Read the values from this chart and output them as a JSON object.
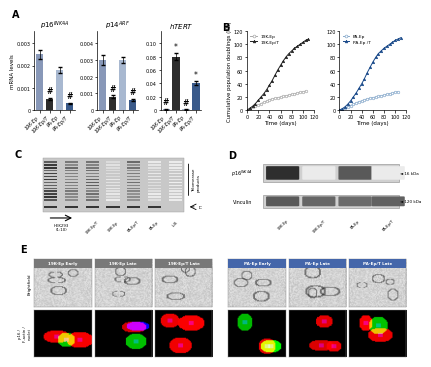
{
  "panel_A": {
    "categories": [
      "19K-Ep",
      "19K-Ep/T",
      "PA-Ep",
      "PA-Ep/T"
    ],
    "bar_colors": [
      "#8898b8",
      "#2d2d2d",
      "#a8b8d0",
      "#3a5a8a"
    ],
    "p16_values": [
      0.0025,
      0.0005,
      0.0018,
      0.0003
    ],
    "p16_errors": [
      0.0002,
      5e-05,
      0.00015,
      3e-05
    ],
    "p16_ylim": 0.003,
    "p16_yticks": [
      0,
      0.001,
      0.002,
      0.003
    ],
    "p16_yticklabels": [
      "0",
      "0.001",
      "0.002",
      "0.003"
    ],
    "p14_values": [
      0.003,
      0.0008,
      0.003,
      0.0006
    ],
    "p14_errors": [
      0.0003,
      8e-05,
      0.0002,
      6e-05
    ],
    "p14_ylim": 0.004,
    "p14_yticks": [
      0,
      0.001,
      0.002,
      0.003,
      0.004
    ],
    "p14_yticklabels": [
      "0",
      "0.001",
      "0.002",
      "0.003",
      "0.004"
    ],
    "hTERT_values": [
      0.001,
      0.08,
      0.001,
      0.04
    ],
    "hTERT_errors": [
      0.0005,
      0.005,
      0.0003,
      0.003
    ],
    "hTERT_ylim": 0.1,
    "hTERT_yticks": [
      0,
      0.02,
      0.04,
      0.06,
      0.08,
      0.1
    ],
    "hTERT_yticklabels": [
      "0",
      "0.02",
      "0.04",
      "0.06",
      "0.08",
      "0.10"
    ],
    "ylabel": "mRNA levels"
  },
  "panel_B_left": {
    "x_19Kep": [
      0,
      5,
      10,
      15,
      20,
      25,
      30,
      35,
      40,
      45,
      50,
      55,
      60,
      65,
      70,
      75,
      80,
      85,
      90,
      95,
      100,
      105
    ],
    "y_19Kep": [
      0,
      2,
      4,
      6,
      8,
      10,
      12,
      14,
      16,
      17,
      18,
      19,
      20,
      21,
      22,
      23,
      24,
      25,
      26,
      27,
      28,
      29
    ],
    "x_19KepT": [
      0,
      5,
      10,
      15,
      20,
      25,
      30,
      35,
      40,
      45,
      50,
      55,
      60,
      65,
      70,
      75,
      80,
      85,
      90,
      95,
      100,
      105,
      110
    ],
    "y_19KepT": [
      0,
      3,
      6,
      10,
      15,
      20,
      25,
      31,
      38,
      45,
      53,
      61,
      68,
      75,
      81,
      86,
      90,
      94,
      97,
      100,
      103,
      106,
      108
    ],
    "xlabel": "Time (days)",
    "ylabel": "Cumulative population doublings (PD)",
    "ylim": [
      0,
      120
    ],
    "xlim": [
      0,
      120
    ],
    "color_19Kep": "#aaaaaa",
    "color_19KepT": "#222222",
    "legend_19Kep": "19K-Ep",
    "legend_19KepT": "19K-Ep/T"
  },
  "panel_B_right": {
    "x_PAep": [
      0,
      5,
      10,
      15,
      20,
      25,
      30,
      35,
      40,
      45,
      50,
      55,
      60,
      65,
      70,
      75,
      80,
      85,
      90,
      95,
      100,
      105
    ],
    "y_PAep": [
      0,
      1,
      3,
      5,
      7,
      9,
      11,
      13,
      14,
      16,
      17,
      18,
      19,
      20,
      21,
      22,
      23,
      24,
      25,
      26,
      27,
      28
    ],
    "x_PAepT": [
      0,
      5,
      10,
      15,
      20,
      25,
      30,
      35,
      40,
      45,
      50,
      55,
      60,
      65,
      70,
      75,
      80,
      85,
      90,
      95,
      100,
      105,
      110
    ],
    "y_PAepT": [
      0,
      2,
      5,
      9,
      14,
      20,
      26,
      33,
      40,
      48,
      57,
      65,
      73,
      80,
      86,
      90,
      94,
      97,
      100,
      103,
      106,
      108,
      110
    ],
    "xlabel": "Time (days)",
    "ylabel": "",
    "ylim": [
      0,
      120
    ],
    "xlim": [
      0,
      120
    ],
    "color_PAep": "#88aacc",
    "color_PAepT": "#1a4a8a",
    "legend_PAep": "PA-Ep",
    "legend_PAepT": "PA-Ep /T"
  },
  "panel_C": {
    "labels": [
      "HEK293\n(1:10)",
      "19K-Ep/T",
      "19K-Ep",
      "PA-Ep/T",
      "PA-Ep",
      "L.B."
    ],
    "right_label": "Telomerase\nproducts",
    "bottom_label": "IC"
  },
  "panel_D": {
    "row_labels": [
      "p16INK4A",
      "Vinculin"
    ],
    "col_labels": [
      "19K-Ep",
      "19K-Ep/T",
      "PA-Ep",
      "PA-Ep/T"
    ],
    "right_labels": [
      "16 kDa",
      "120 kDa"
    ],
    "p16_intensities": [
      0.82,
      0.08,
      0.65,
      0.08
    ],
    "vinculin_intensities": [
      0.65,
      0.6,
      0.58,
      0.62
    ]
  },
  "panel_E_labels_left": [
    "19K-Ep Early",
    "19K-Ep Late",
    "19K-Ep/T Late"
  ],
  "panel_E_labels_right": [
    "PA-Ep Early",
    "PA-Ep Late",
    "PA-Ep/T Late"
  ],
  "panel_E_header_gray": "#787878",
  "panel_E_header_blue": "#4466aa",
  "background_color": "#ffffff"
}
